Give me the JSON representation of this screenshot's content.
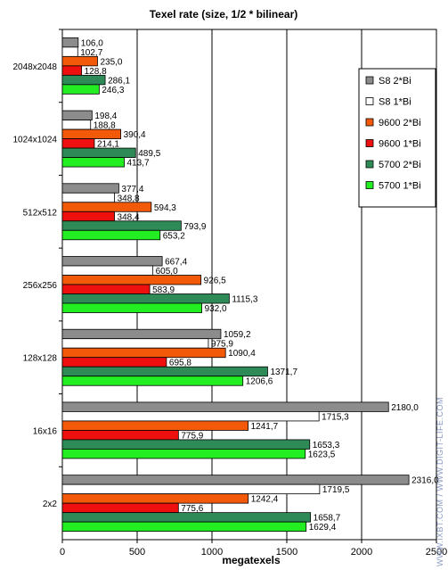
{
  "chart_data": {
    "type": "bar",
    "orientation": "horizontal",
    "title": "Texel rate (size, 1/2 * bilinear)",
    "xlabel": "megatexels",
    "ylabel": "",
    "xlim": [
      0,
      2500
    ],
    "xticks": [
      0,
      500,
      1000,
      1500,
      2000,
      2500
    ],
    "grid": true,
    "legend_position": "right",
    "categories": [
      "2048x2048",
      "1024x1024",
      "512x512",
      "256x256",
      "128x128",
      "16x16",
      "2x2"
    ],
    "series": [
      {
        "name": "S8 2*Bi",
        "color": "#8c8c8c",
        "values": [
          106.0,
          198.4,
          377.4,
          667.4,
          1059.2,
          2180.0,
          2316.0
        ]
      },
      {
        "name": "S8 1*Bi",
        "color": "#ffffff",
        "values": [
          102.7,
          188.8,
          348.8,
          605.0,
          975.9,
          1715.3,
          1719.5
        ]
      },
      {
        "name": "9600 2*Bi",
        "color": "#f25a0a",
        "values": [
          235.0,
          390.4,
          594.3,
          926.5,
          1090.4,
          1241.7,
          1242.4
        ]
      },
      {
        "name": "9600 1*Bi",
        "color": "#ee0f0f",
        "values": [
          128.8,
          214.1,
          348.4,
          583.9,
          695.8,
          775.9,
          775.6
        ]
      },
      {
        "name": "5700 2*Bi",
        "color": "#2e8b57",
        "values": [
          286.1,
          489.5,
          793.9,
          1115.3,
          1371.7,
          1653.3,
          1658.7
        ]
      },
      {
        "name": "5700 1*Bi",
        "color": "#22ee22",
        "values": [
          246.3,
          413.7,
          653.2,
          932.0,
          1206.6,
          1623.5,
          1629.4
        ]
      }
    ],
    "data_labels": [
      [
        "106,0",
        "102,7",
        "235,0",
        "128,8",
        "286,1",
        "246,3"
      ],
      [
        "198,4",
        "188,8",
        "390,4",
        "214,1",
        "489,5",
        "413,7"
      ],
      [
        "377,4",
        "348,8",
        "594,3",
        "348,4",
        "793,9",
        "653,2"
      ],
      [
        "667,4",
        "605,0",
        "926,5",
        "583,9",
        "1115,3",
        "932,0"
      ],
      [
        "1059,2",
        "975,9",
        "1090,4",
        "695,8",
        "1371,7",
        "1206,6"
      ],
      [
        "2180,0",
        "1715,3",
        "1241,7",
        "775,9",
        "1653,3",
        "1623,5"
      ],
      [
        "2316,0",
        "1719,5",
        "1242,4",
        "775,6",
        "1658,7",
        "1629,4"
      ]
    ],
    "watermark": "WWW.iXBT.COM / WWW.DIGIT-LIFE.COM"
  }
}
